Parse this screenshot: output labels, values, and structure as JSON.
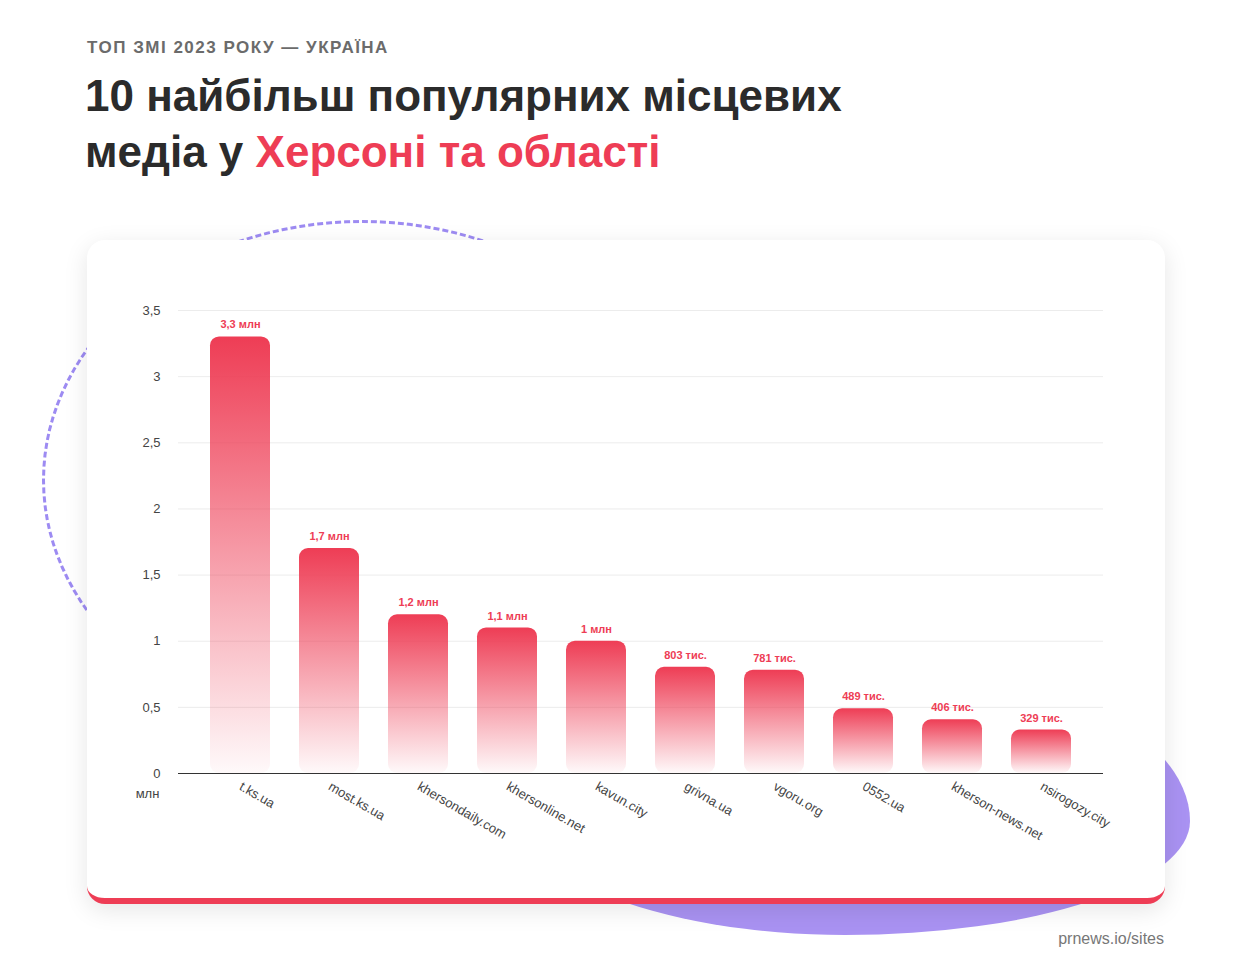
{
  "chart_data": {
    "type": "bar",
    "supertitle": "ТОП ЗМІ 2023 РОКУ — УКРАЇНА",
    "title": [
      "10 найбільш популярних місцевих медіа у",
      "Херсоні та області"
    ],
    "source": "prnews.io/sites",
    "y_label": "млн",
    "categories": [
      "t.ks.ua",
      "most.ks.ua",
      "khersondaily.com",
      "khersonline.net",
      "kavun.city",
      "grivna.ua",
      "vgoru.org",
      "0552.ua",
      "kherson-news.net",
      "nsirogozy.city"
    ],
    "values": [
      3.3,
      1.7,
      1.2,
      1.1,
      1.0,
      0.803,
      0.781,
      0.489,
      0.406,
      0.329
    ],
    "value_labels": [
      "3,3 млн",
      "1,7 млн",
      "1,2 млн",
      "1,1 млн",
      "1 млн",
      "803 тис.",
      "781 тис.",
      "489 тис.",
      "406 тис.",
      "329 тис."
    ],
    "color": "#ee3d55",
    "ylim": [
      0,
      3.5
    ],
    "yticks": [
      0,
      {
        "value": 0.5,
        "label": "0,5"
      },
      1,
      {
        "value": 1.5,
        "label": "1,5"
      },
      2,
      {
        "value": 2.5,
        "label": "2,5"
      },
      3,
      {
        "value": 3.5,
        "label": "3,5"
      }
    ],
    "grid": true,
    "data_labels": true
  }
}
